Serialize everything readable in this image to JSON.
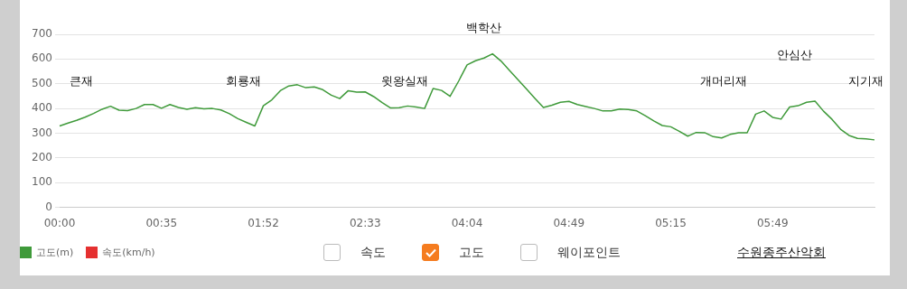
{
  "chart_data": {
    "type": "line",
    "categories": [
      "00:00",
      null,
      null,
      null,
      null,
      null,
      null,
      null,
      null,
      null,
      null,
      null,
      "00:35",
      null,
      null,
      null,
      null,
      null,
      null,
      null,
      null,
      null,
      null,
      null,
      "01:52",
      null,
      null,
      null,
      null,
      null,
      null,
      null,
      null,
      null,
      null,
      null,
      "02:33",
      null,
      null,
      null,
      null,
      null,
      null,
      null,
      null,
      null,
      null,
      null,
      "04:04",
      null,
      null,
      null,
      null,
      null,
      null,
      null,
      null,
      null,
      null,
      null,
      "04:49",
      null,
      null,
      null,
      null,
      null,
      null,
      null,
      null,
      null,
      null,
      null,
      "05:15",
      null,
      null,
      null,
      null,
      null,
      null,
      null,
      null,
      null,
      null,
      null,
      "05:49",
      null,
      null,
      null,
      null,
      null,
      null,
      null,
      null,
      null,
      null,
      null,
      null
    ],
    "series": [
      {
        "name": "고도(m)",
        "color": "#3f9a3a",
        "values": [
          329,
          341,
          352,
          365,
          380,
          397,
          409,
          393,
          391,
          400,
          416,
          416,
          401,
          416,
          404,
          397,
          403,
          399,
          400,
          394,
          379,
          359,
          344,
          329,
          411,
          435,
          472,
          491,
          496,
          484,
          487,
          476,
          454,
          440,
          472,
          466,
          467,
          448,
          424,
          402,
          403,
          410,
          406,
          400,
          481,
          473,
          449,
          510,
          576,
          593,
          604,
          621,
          592,
          554,
          516,
          479,
          441,
          404,
          413,
          425,
          429,
          416,
          408,
          400,
          390,
          390,
          398,
          396,
          390,
          371,
          350,
          331,
          326,
          308,
          288,
          303,
          302,
          286,
          281,
          295,
          302,
          302,
          377,
          390,
          364,
          357,
          406,
          411,
          425,
          430,
          389,
          356,
          316,
          291,
          279,
          277,
          273
        ]
      },
      {
        "name": "속도(km/h)",
        "color": "#e53030",
        "values": [
          null,
          null,
          null,
          null,
          null,
          null,
          null,
          null,
          null,
          null,
          null,
          null,
          null,
          null,
          null,
          null,
          null,
          null,
          null,
          null,
          null,
          null,
          null,
          null,
          null,
          null,
          null,
          null,
          null,
          null,
          null,
          null,
          null,
          null,
          null,
          null,
          null,
          null,
          null,
          null,
          null,
          null,
          null,
          null,
          null,
          null,
          null,
          null,
          null,
          null,
          null,
          null,
          null,
          null,
          null,
          null,
          null,
          null,
          null,
          null,
          null,
          null,
          null,
          null,
          null,
          null,
          null,
          null,
          null,
          null,
          null,
          null,
          null,
          null,
          null,
          null,
          null,
          null,
          null,
          null,
          null,
          null,
          null,
          null,
          null,
          null,
          null,
          null,
          null,
          null,
          null,
          null,
          null,
          null,
          null,
          null,
          null
        ]
      }
    ],
    "ylim": [
      0,
      700
    ],
    "yticks": [
      0,
      100,
      200,
      300,
      400,
      500,
      600,
      700
    ],
    "grid": "y",
    "legend": "bottom left",
    "marker": "none",
    "line_style": "solid",
    "annotations": [
      "큰재",
      "회룡재",
      "윗왕실재",
      "백학산",
      "개머리재",
      "안심산",
      "지기재",
      "속도",
      "고도",
      "웨이포인트",
      "수원종주산악회"
    ]
  }
}
